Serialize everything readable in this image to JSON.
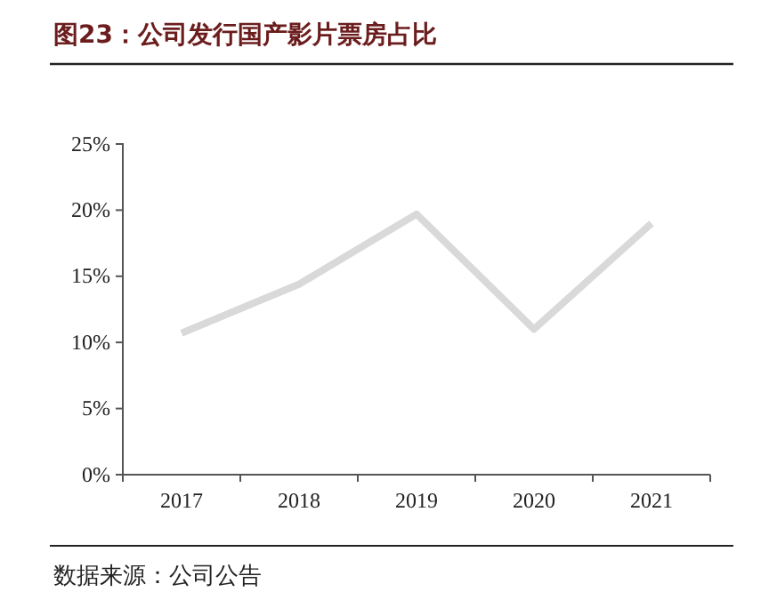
{
  "chart_data": {
    "type": "line",
    "title": "图23：公司发行国产影片票房占比",
    "categories": [
      "2017",
      "2018",
      "2019",
      "2020",
      "2021"
    ],
    "series": [
      {
        "color": "#d9d9d9",
        "values": [
          10.7,
          14.4,
          19.7,
          11.0,
          19.0
        ]
      }
    ],
    "ylim": [
      0,
      25
    ],
    "yticks": [
      {
        "value": 0,
        "label": "0%"
      },
      {
        "value": 5,
        "label": "5%"
      },
      {
        "value": 10,
        "label": "10%"
      },
      {
        "value": 15,
        "label": "15%"
      },
      {
        "value": 20,
        "label": "20%"
      },
      {
        "value": 25,
        "label": "25%"
      }
    ],
    "grid": false,
    "marker": "none",
    "line_style": "solid",
    "annotations": [
      "数据来源：公司公告"
    ]
  }
}
